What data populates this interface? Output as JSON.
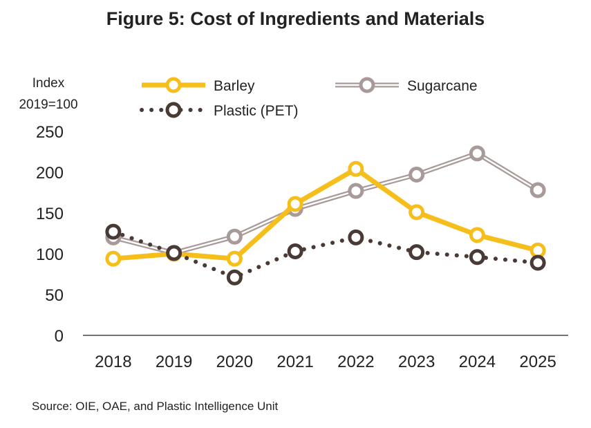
{
  "chart_data": {
    "type": "line",
    "title": "Figure 5: Cost of Ingredients and Materials",
    "ylabel_line1": "Index",
    "ylabel_line2": "2019=100",
    "source": "Source: OIE, OAE, and Plastic Intelligence Unit",
    "x": [
      "2018",
      "2019",
      "2020",
      "2021",
      "2022",
      "2023",
      "2024",
      "2025"
    ],
    "yticks": [
      0,
      50,
      100,
      150,
      200,
      250
    ],
    "ylim": [
      0,
      250
    ],
    "grid": false,
    "legend_position": "top",
    "series": [
      {
        "name": "Barley",
        "style": "solid",
        "color": "#F6BE1A",
        "values": [
          94,
          100,
          94,
          161,
          204,
          151,
          123,
          104
        ]
      },
      {
        "name": "Sugarcane",
        "style": "double-outline",
        "color": "#A89A98",
        "values": [
          120,
          101,
          121,
          155,
          177,
          197,
          223,
          178
        ]
      },
      {
        "name": "Plastic (PET)",
        "style": "dotted",
        "color": "#4A3A36",
        "values": [
          127,
          101,
          71,
          103,
          120,
          102,
          96,
          89
        ]
      }
    ]
  }
}
